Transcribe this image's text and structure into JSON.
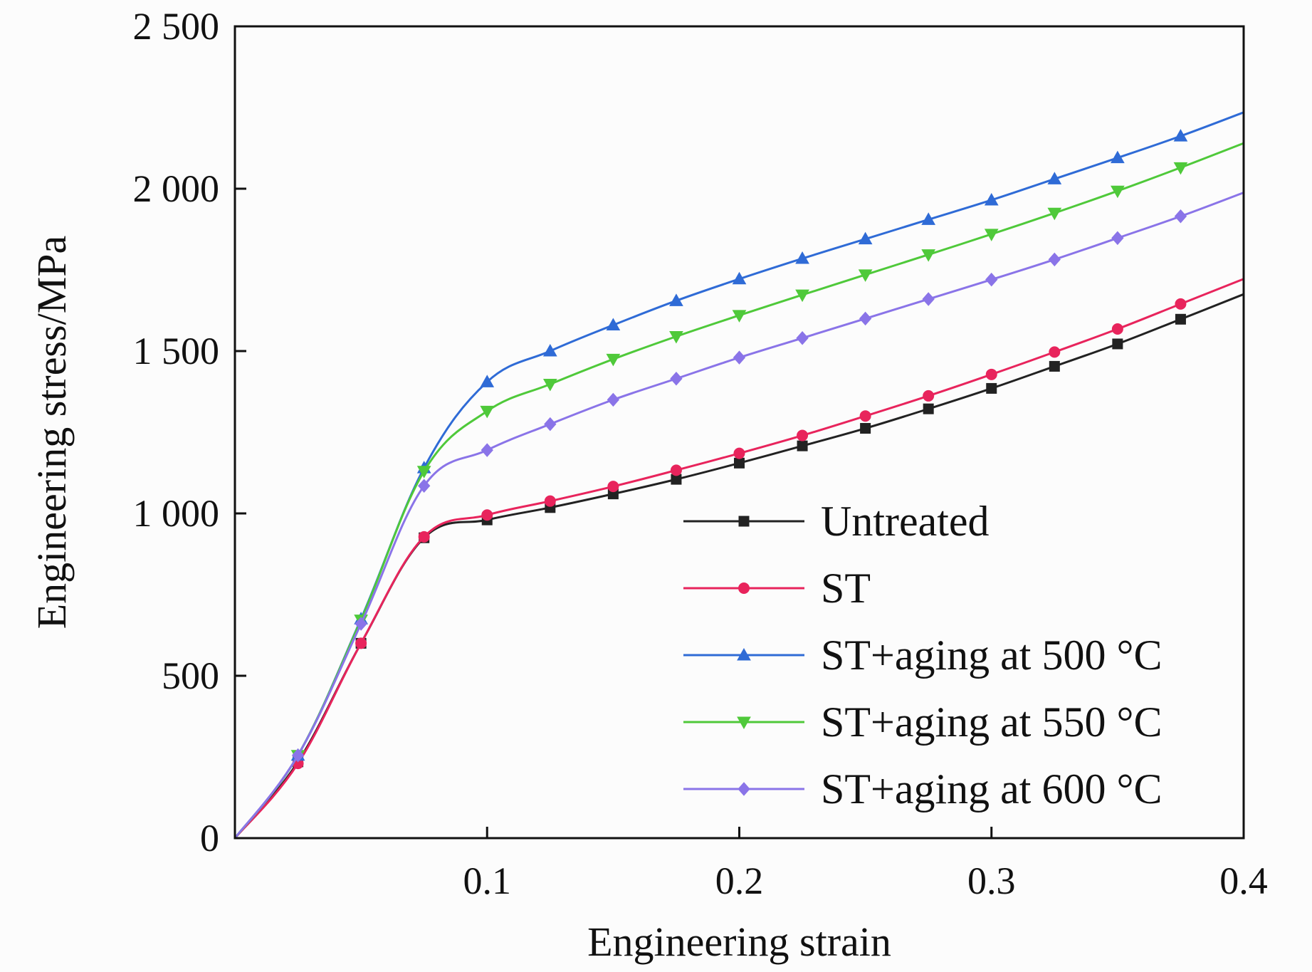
{
  "chart_data": {
    "type": "line",
    "xlabel": "Engineering strain",
    "ylabel": "Engineering stress/MPa",
    "xlim": [
      0,
      0.4
    ],
    "ylim": [
      0,
      2500
    ],
    "xticks": [
      {
        "value": 0.1,
        "label": "0.1"
      },
      {
        "value": 0.2,
        "label": "0.2"
      },
      {
        "value": 0.3,
        "label": "0.3"
      },
      {
        "value": 0.4,
        "label": "0.4"
      }
    ],
    "yticks": [
      {
        "value": 0,
        "label": "0"
      },
      {
        "value": 500,
        "label": "500"
      },
      {
        "value": 1000,
        "label": "1 000"
      },
      {
        "value": 1500,
        "label": "1 500"
      },
      {
        "value": 2000,
        "label": "2 000"
      },
      {
        "value": 2500,
        "label": "2 500"
      }
    ],
    "grid": false,
    "legend_position": "lower-right",
    "series": [
      {
        "name": "Untreated",
        "color": "#222222",
        "marker": "square",
        "x": [
          0,
          0.025,
          0.05,
          0.075,
          0.1,
          0.125,
          0.15,
          0.175,
          0.2,
          0.225,
          0.25,
          0.275,
          0.3,
          0.325,
          0.35,
          0.375,
          0.4
        ],
        "y": [
          0,
          235,
          600,
          925,
          980,
          1018,
          1060,
          1105,
          1155,
          1208,
          1262,
          1322,
          1385,
          1453,
          1522,
          1598,
          1675
        ]
      },
      {
        "name": "ST",
        "color": "#e8245c",
        "marker": "circle",
        "x": [
          0,
          0.025,
          0.05,
          0.075,
          0.1,
          0.125,
          0.15,
          0.175,
          0.2,
          0.225,
          0.25,
          0.275,
          0.3,
          0.325,
          0.35,
          0.375,
          0.4
        ],
        "y": [
          0,
          230,
          600,
          928,
          995,
          1038,
          1083,
          1133,
          1185,
          1240,
          1300,
          1362,
          1428,
          1497,
          1568,
          1645,
          1722
        ]
      },
      {
        "name": "ST+aging at 500 °C",
        "color": "#2f6bd6",
        "marker": "triangle-up",
        "x": [
          0,
          0.025,
          0.05,
          0.075,
          0.1,
          0.125,
          0.15,
          0.175,
          0.2,
          0.225,
          0.25,
          0.275,
          0.3,
          0.325,
          0.35,
          0.375,
          0.4
        ],
        "y": [
          0,
          255,
          675,
          1140,
          1405,
          1500,
          1580,
          1655,
          1722,
          1785,
          1845,
          1905,
          1965,
          2030,
          2095,
          2162,
          2235
        ]
      },
      {
        "name": "ST+aging at 550 °C",
        "color": "#4fc93a",
        "marker": "triangle-down",
        "x": [
          0,
          0.025,
          0.05,
          0.075,
          0.1,
          0.125,
          0.15,
          0.175,
          0.2,
          0.225,
          0.25,
          0.275,
          0.3,
          0.325,
          0.35,
          0.375,
          0.4
        ],
        "y": [
          0,
          255,
          672,
          1130,
          1315,
          1398,
          1475,
          1545,
          1610,
          1673,
          1735,
          1797,
          1860,
          1925,
          1993,
          2065,
          2140
        ]
      },
      {
        "name": "ST+aging at 600 °C",
        "color": "#8a74e8",
        "marker": "diamond",
        "x": [
          0,
          0.025,
          0.05,
          0.075,
          0.1,
          0.125,
          0.15,
          0.175,
          0.2,
          0.225,
          0.25,
          0.275,
          0.3,
          0.325,
          0.35,
          0.375,
          0.4
        ],
        "y": [
          0,
          255,
          660,
          1085,
          1195,
          1275,
          1350,
          1415,
          1480,
          1540,
          1600,
          1660,
          1720,
          1782,
          1848,
          1915,
          1988
        ]
      }
    ]
  }
}
